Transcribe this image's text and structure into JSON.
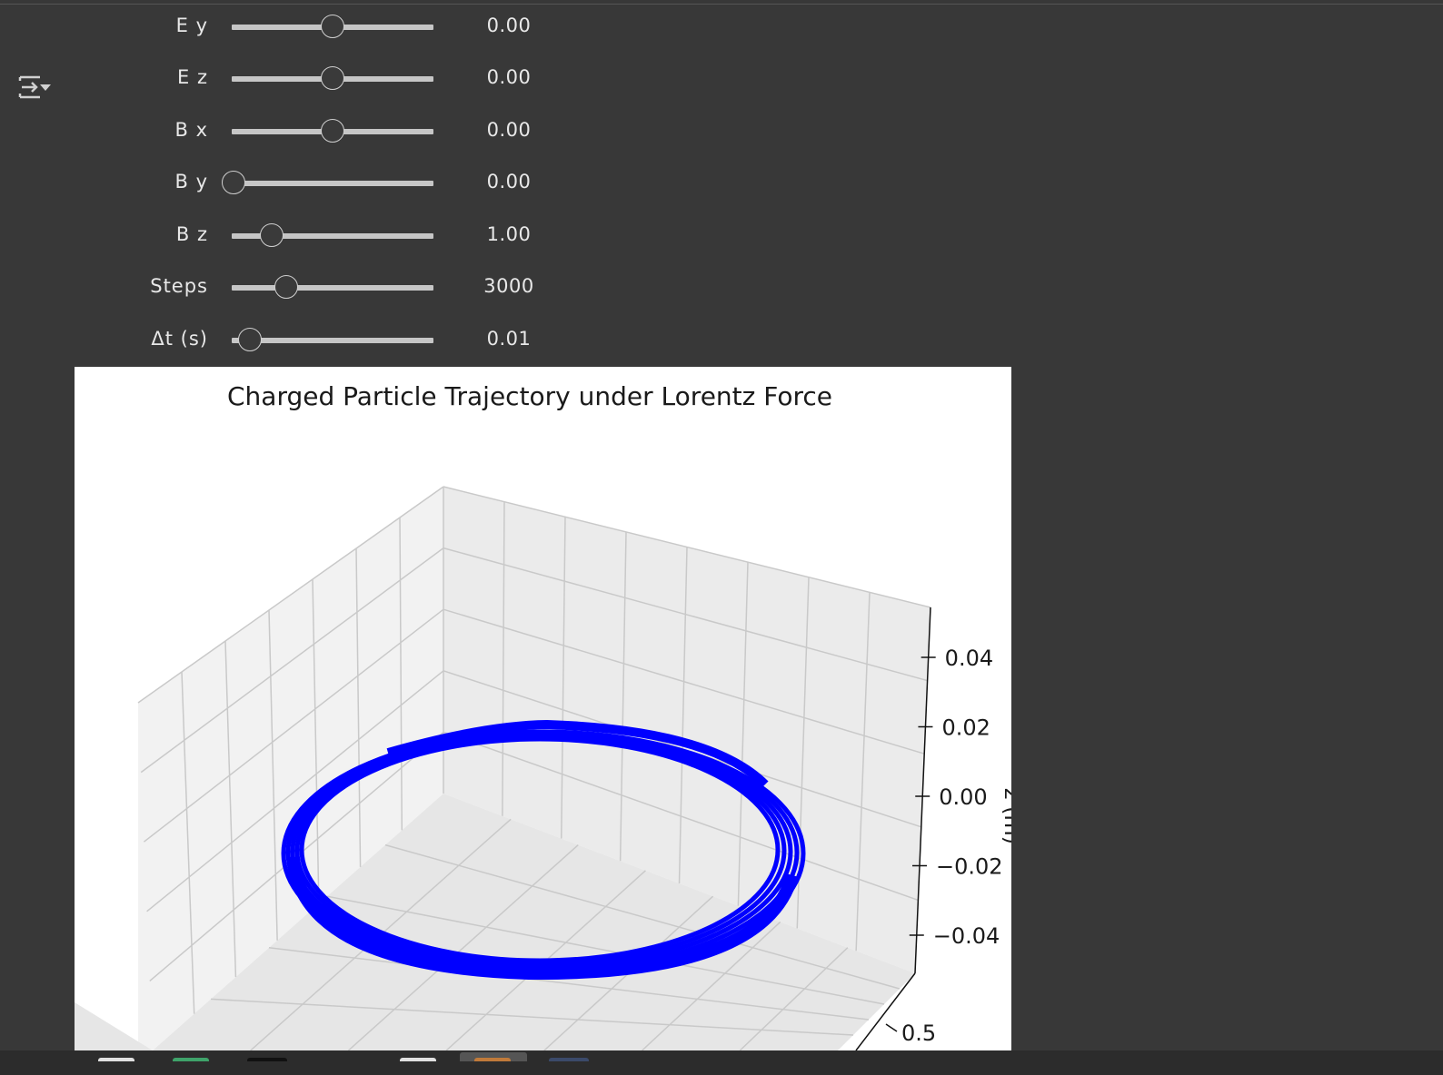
{
  "controls": {
    "sliders": [
      {
        "id": "ey",
        "label": "E y",
        "value_text": "0.00",
        "fraction": 0.5
      },
      {
        "id": "ez",
        "label": "E z",
        "value_text": "0.00",
        "fraction": 0.5
      },
      {
        "id": "bx",
        "label": "B x",
        "value_text": "0.00",
        "fraction": 0.5
      },
      {
        "id": "by",
        "label": "B y",
        "value_text": "0.00",
        "fraction": 0.0
      },
      {
        "id": "bz",
        "label": "B z",
        "value_text": "1.00",
        "fraction": 0.2
      },
      {
        "id": "steps",
        "label": "Steps",
        "value_text": "3000",
        "fraction": 0.27
      },
      {
        "id": "dt",
        "label": "Δt (s)",
        "value_text": "0.01",
        "fraction": 0.09
      }
    ]
  },
  "colors": {
    "background": "#383838",
    "trajectory": "#0000ff",
    "figure_bg": "#ffffff"
  },
  "chart_data": {
    "type": "line",
    "title": "Charged Particle Trajectory under Lorentz Force",
    "zlabel": "z (m)",
    "zlim": [
      -0.05,
      0.05
    ],
    "z_ticks": [
      "0.04",
      "0.02",
      "0.00",
      "−0.02",
      "−0.04"
    ],
    "y_ticks": [
      "0.5"
    ],
    "grid": true,
    "series": [
      {
        "description": "helical trajectory in xy plane, z = 0",
        "z": 0.0,
        "turns": 5
      }
    ]
  }
}
